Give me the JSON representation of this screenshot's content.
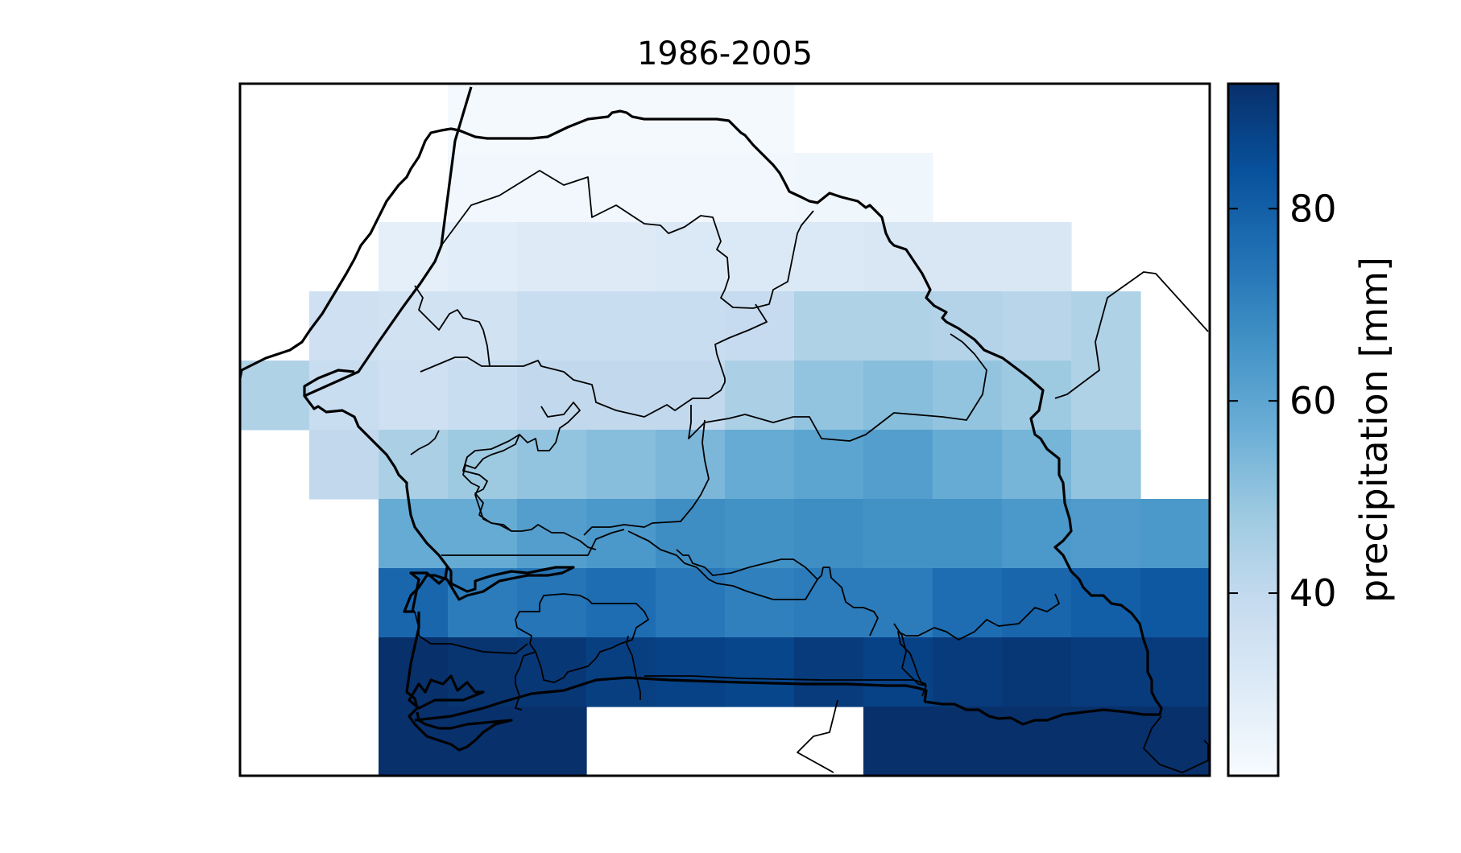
{
  "title": "1986-2005",
  "colorbar": {
    "label": "precipitation [mm]",
    "ticks": [
      40,
      60,
      80
    ],
    "tick_labels": [
      "40",
      "60",
      "80"
    ],
    "range": [
      21,
      93
    ],
    "colormap": "Blues",
    "colors": [
      "#f7fbff",
      "#deebf7",
      "#c6dbef",
      "#9ecae1",
      "#6baed6",
      "#4292c6",
      "#2171b5",
      "#08519c",
      "#08306b"
    ]
  },
  "grid": {
    "rows": 10,
    "cols": 14,
    "values": [
      [
        null,
        null,
        null,
        22,
        22,
        22,
        22,
        22,
        null,
        null,
        null,
        null,
        null,
        null
      ],
      [
        null,
        null,
        null,
        23,
        23,
        23,
        23,
        23,
        24,
        24,
        null,
        null,
        null,
        null
      ],
      [
        null,
        null,
        28,
        29,
        30,
        30,
        31,
        31,
        31,
        32,
        32,
        32,
        null,
        null
      ],
      [
        null,
        36,
        35,
        35,
        38,
        38,
        38,
        39,
        44,
        44,
        43,
        42,
        44,
        null
      ],
      [
        44,
        38,
        36,
        38,
        40,
        40,
        40,
        45,
        50,
        52,
        50,
        48,
        44,
        null
      ],
      [
        null,
        40,
        45,
        48,
        50,
        52,
        54,
        58,
        60,
        62,
        58,
        55,
        50,
        null
      ],
      [
        null,
        null,
        58,
        58,
        62,
        64,
        67,
        66,
        67,
        66,
        66,
        64,
        63,
        64
      ],
      [
        null,
        null,
        78,
        72,
        74,
        76,
        73,
        71,
        72,
        72,
        76,
        78,
        80,
        82
      ],
      [
        null,
        null,
        93,
        92,
        91,
        89,
        88,
        87,
        90,
        88,
        90,
        91,
        90,
        90
      ],
      [
        null,
        null,
        93,
        93,
        93,
        null,
        null,
        null,
        null,
        93,
        93,
        93,
        93,
        93
      ]
    ]
  }
}
